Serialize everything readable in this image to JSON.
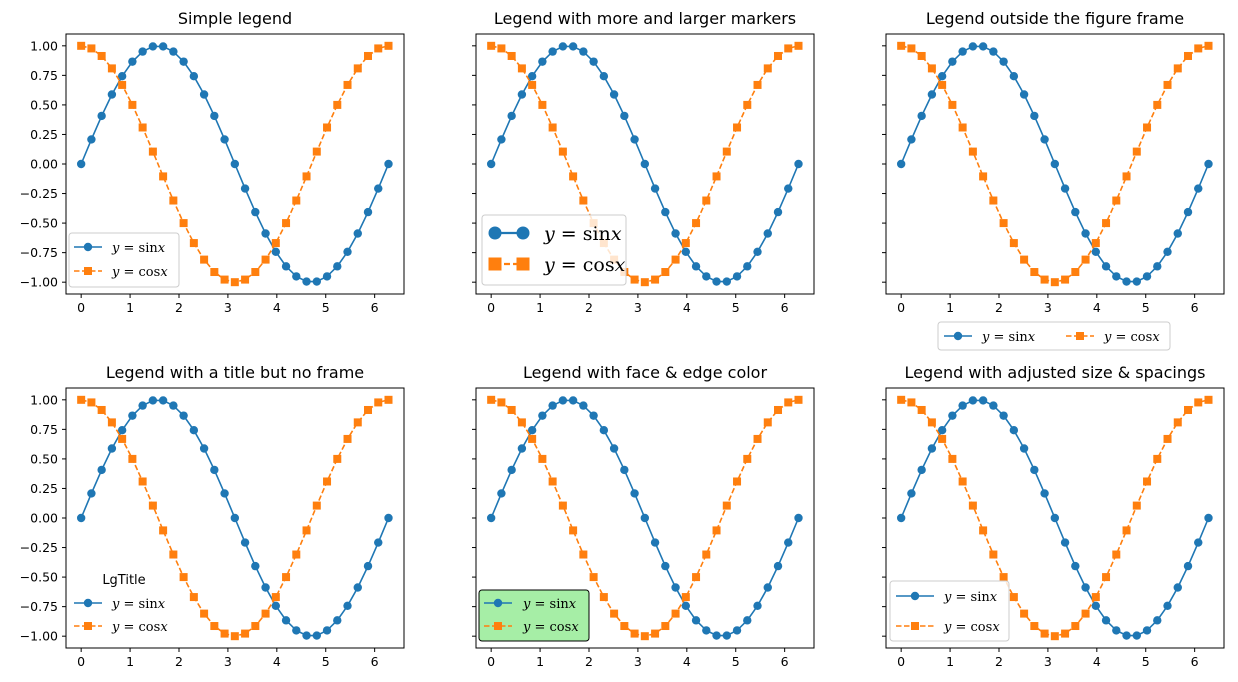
{
  "figure": {
    "background": "#ffffff",
    "series_colors": {
      "sin": "#1f77b4",
      "cos": "#ff7f0e"
    }
  },
  "chart_data": [
    {
      "type": "line",
      "title": "Simple legend",
      "x": [
        0,
        0.2094,
        0.4189,
        0.6283,
        0.8378,
        1.0472,
        1.2566,
        1.4661,
        1.6755,
        1.885,
        2.0944,
        2.3038,
        2.5133,
        2.7227,
        2.9322,
        3.1416,
        3.351,
        3.5605,
        3.7699,
        3.9794,
        4.1888,
        4.3982,
        4.6077,
        4.8171,
        5.0265,
        5.236,
        5.4454,
        5.6549,
        5.8643,
        6.0737,
        6.2832
      ],
      "series": [
        {
          "name": "y = sin x",
          "values": [
            0,
            0.208,
            0.407,
            0.588,
            0.743,
            0.866,
            0.951,
            0.995,
            0.995,
            0.951,
            0.866,
            0.743,
            0.588,
            0.407,
            0.208,
            0,
            -0.208,
            -0.407,
            -0.588,
            -0.743,
            -0.866,
            -0.951,
            -0.995,
            -0.995,
            -0.951,
            -0.866,
            -0.743,
            -0.588,
            -0.407,
            -0.208,
            0
          ],
          "color": "#1f77b4",
          "marker": "circle",
          "linestyle": "solid"
        },
        {
          "name": "y = cos x",
          "values": [
            1,
            0.978,
            0.914,
            0.809,
            0.669,
            0.5,
            0.309,
            0.105,
            -0.105,
            -0.309,
            -0.5,
            -0.669,
            -0.809,
            -0.914,
            -0.978,
            -1,
            -0.978,
            -0.914,
            -0.809,
            -0.669,
            -0.5,
            -0.309,
            -0.105,
            0.105,
            0.309,
            0.5,
            0.669,
            0.809,
            0.914,
            0.978,
            1
          ],
          "color": "#ff7f0e",
          "marker": "square",
          "linestyle": "dashed"
        }
      ],
      "xlim": [
        -0.31,
        6.6
      ],
      "ylim": [
        -1.1,
        1.1
      ],
      "xticks": [
        "0",
        "1",
        "2",
        "3",
        "4",
        "5",
        "6"
      ],
      "yticks": [
        "1.00",
        "0.75",
        "0.50",
        "0.25",
        "0.00",
        "−0.25",
        "−0.50",
        "−0.75",
        "−1.00"
      ],
      "legend": {
        "placement": "lower-left",
        "frame": true,
        "title": "",
        "labels": [
          "y = sin x",
          "y = cos x"
        ]
      }
    },
    {
      "type": "line",
      "title": "Legend with more and larger markers",
      "series_ref": "same-as-first",
      "xticks": [
        "0",
        "1",
        "2",
        "3",
        "4",
        "5",
        "6"
      ],
      "legend": {
        "placement": "lower-left",
        "frame": true,
        "title": "",
        "style": "large markers, two markers per entry",
        "labels": [
          "y = sin x",
          "y = cos x"
        ]
      }
    },
    {
      "type": "line",
      "title": "Legend outside the figure frame",
      "series_ref": "same-as-first",
      "xticks": [
        "0",
        "1",
        "2",
        "3",
        "4",
        "5",
        "6"
      ],
      "legend": {
        "placement": "below axes, two columns",
        "frame": true,
        "title": "",
        "labels": [
          "y = sin x",
          "y = cos x"
        ]
      }
    },
    {
      "type": "line",
      "title": "Legend with a title but no frame",
      "series_ref": "same-as-first",
      "xticks": [
        "0",
        "1",
        "2",
        "3",
        "4",
        "5",
        "6"
      ],
      "yticks": [
        "1.00",
        "0.75",
        "0.50",
        "0.25",
        "0.00",
        "−0.25",
        "−0.50",
        "−0.75",
        "−1.00"
      ],
      "legend": {
        "placement": "lower-left",
        "frame": false,
        "title": "LgTitle",
        "labels": [
          "y = sin x",
          "y = cos x"
        ]
      }
    },
    {
      "type": "line",
      "title": "Legend with face & edge color",
      "series_ref": "same-as-first",
      "xticks": [
        "0",
        "1",
        "2",
        "3",
        "4",
        "5",
        "6"
      ],
      "legend": {
        "placement": "lower-left",
        "frame": true,
        "title": "",
        "facecolor": "#a6eea6",
        "edgecolor": "#000000",
        "labels": [
          "y = sin x",
          "y = cos x"
        ]
      }
    },
    {
      "type": "line",
      "title": "Legend with adjusted size & spacings",
      "series_ref": "same-as-first",
      "xticks": [
        "0",
        "1",
        "2",
        "3",
        "4",
        "5",
        "6"
      ],
      "legend": {
        "placement": "lower-left",
        "frame": true,
        "title": "",
        "style": "wider spacing, long line handles",
        "labels": [
          "y = sin x",
          "y = cos x"
        ]
      }
    }
  ]
}
